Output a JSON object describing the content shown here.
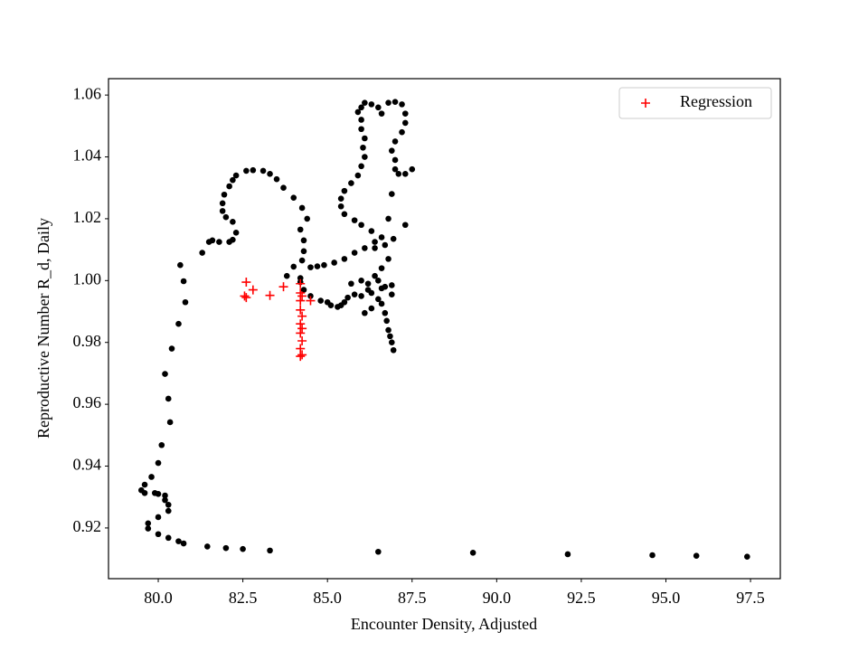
{
  "chart_data": {
    "type": "scatter",
    "xlabel": "Encounter Density, Adjusted",
    "ylabel": "Reproductive Number R_d, Daily",
    "xlim": [
      78.53,
      98.38
    ],
    "ylim": [
      0.9036,
      1.0653
    ],
    "xticks": [
      {
        "value": 80,
        "label": "80.0"
      },
      {
        "value": 82.5,
        "label": "82.5"
      },
      {
        "value": 85,
        "label": "85.0"
      },
      {
        "value": 87.5,
        "label": "87.5"
      },
      {
        "value": 90,
        "label": "90.0"
      },
      {
        "value": 92.5,
        "label": "92.5"
      },
      {
        "value": 95,
        "label": "95.0"
      },
      {
        "value": 97.5,
        "label": "97.5"
      }
    ],
    "yticks": [
      0.92,
      0.94,
      0.96,
      0.98,
      {
        "value": 1,
        "label": "1.00"
      },
      1.02,
      1.04,
      1.06
    ],
    "legend": "upper right",
    "series": [
      {
        "color": "#000000",
        "marker": "circle",
        "x": [
          97.4,
          95.9,
          94.6,
          92.1,
          89.3,
          86.5,
          83.3,
          82.5,
          82.0,
          81.45,
          80.75,
          80.6,
          80.3,
          80.0,
          79.7,
          79.7,
          80.0,
          80.3,
          80.3,
          80.2,
          80.2,
          80.0,
          79.9,
          79.6,
          79.5,
          79.6,
          79.8,
          80.0,
          80.1,
          80.35,
          80.3,
          80.2,
          80.4,
          80.6,
          80.8,
          80.75,
          80.65,
          81.3,
          81.5,
          81.6,
          81.8,
          82.1,
          82.2,
          82.3,
          82.2,
          82.0,
          81.9,
          81.9,
          81.95,
          82.1,
          82.2,
          82.3,
          82.6,
          82.8,
          83.1,
          83.3,
          83.5,
          83.7,
          84.0,
          84.25,
          84.4,
          84.2,
          84.3,
          84.3,
          84.25,
          84.0,
          83.8,
          84.2,
          84.2,
          84.3,
          84.5,
          84.8,
          85.0,
          85.1,
          85.3,
          85.4,
          85.5,
          85.6,
          85.8,
          86.0,
          84.5,
          84.7,
          84.9,
          85.2,
          85.5,
          85.8,
          86.1,
          86.4,
          86.6,
          86.3,
          86.0,
          85.8,
          85.5,
          85.4,
          85.4,
          85.5,
          85.7,
          85.9,
          86.0,
          86.1,
          86.05,
          86.1,
          86.0,
          86.0,
          85.9,
          86.0,
          86.1,
          86.3,
          86.5,
          86.6,
          86.8,
          87.0,
          87.2,
          87.3,
          87.3,
          87.2,
          87.0,
          86.9,
          87.0,
          87.0,
          87.1,
          87.3,
          87.5,
          87.3,
          86.95,
          86.7,
          86.4,
          86.8,
          86.6,
          86.4,
          86.2,
          86.3,
          86.5,
          86.3,
          86.1,
          86.6,
          86.9,
          86.9,
          86.6,
          86.7,
          86.75,
          86.8,
          86.85,
          86.9,
          86.95,
          86.8,
          86.9,
          86.5,
          86.7,
          86.2,
          86.0,
          85.7
        ],
        "values": [
          0.9107,
          0.911,
          0.9112,
          0.9115,
          0.912,
          0.9123,
          0.9127,
          0.9132,
          0.9135,
          0.914,
          0.915,
          0.9157,
          0.9168,
          0.918,
          0.9198,
          0.9215,
          0.9235,
          0.9255,
          0.9275,
          0.929,
          0.9305,
          0.931,
          0.9313,
          0.9313,
          0.9322,
          0.934,
          0.9365,
          0.941,
          0.9468,
          0.9542,
          0.9618,
          0.9698,
          0.978,
          0.986,
          0.993,
          0.9998,
          1.005,
          1.009,
          1.0125,
          1.013,
          1.0125,
          1.0125,
          1.0132,
          1.0155,
          1.019,
          1.0205,
          1.0225,
          1.025,
          1.0278,
          1.0305,
          1.0325,
          1.034,
          1.0355,
          1.0357,
          1.0355,
          1.0345,
          1.0328,
          1.03,
          1.0268,
          1.0235,
          1.02,
          1.0165,
          1.013,
          1.0095,
          1.0065,
          1.0045,
          1.0015,
          1.0008,
          0.9995,
          0.997,
          0.995,
          0.9935,
          0.993,
          0.992,
          0.9915,
          0.992,
          0.993,
          0.9945,
          0.9955,
          0.995,
          1.0043,
          1.0046,
          1.005,
          1.0058,
          1.007,
          1.009,
          1.0105,
          1.0125,
          1.014,
          1.016,
          1.018,
          1.0195,
          1.0215,
          1.024,
          1.0265,
          1.029,
          1.0315,
          1.034,
          1.037,
          1.04,
          1.043,
          1.046,
          1.049,
          1.052,
          1.0545,
          1.056,
          1.0575,
          1.057,
          1.056,
          1.054,
          1.0575,
          1.0578,
          1.057,
          1.054,
          1.051,
          1.048,
          1.045,
          1.042,
          1.039,
          1.036,
          1.0345,
          1.0345,
          1.036,
          1.018,
          1.0135,
          1.0115,
          1.0105,
          1.007,
          1.004,
          1.0015,
          0.999,
          0.996,
          0.994,
          0.991,
          0.9895,
          0.9975,
          0.9985,
          0.9955,
          0.9925,
          0.9895,
          0.987,
          0.984,
          0.982,
          0.98,
          0.9775,
          1.02,
          1.028,
          1.0,
          0.998,
          0.997,
          1.0,
          0.999
        ]
      },
      {
        "name": "Regression",
        "color": "#ff0000",
        "marker": "plus",
        "x": [
          82.6,
          82.8,
          82.55,
          82.6,
          83.3,
          83.7,
          84.2,
          84.2,
          84.25,
          84.2,
          84.5,
          84.2,
          84.25,
          84.2,
          84.25,
          84.2,
          84.25,
          84.2,
          84.25,
          84.2
        ],
        "values": [
          0.9995,
          0.997,
          0.995,
          0.9945,
          0.9952,
          0.998,
          0.999,
          0.996,
          0.995,
          0.9935,
          0.9935,
          0.9905,
          0.9885,
          0.986,
          0.9845,
          0.983,
          0.9805,
          0.978,
          0.976,
          0.9755
        ]
      }
    ]
  }
}
